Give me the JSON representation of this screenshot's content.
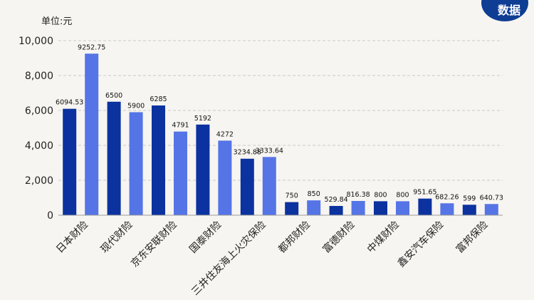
{
  "unit_label": "单位:元",
  "badge_text": "数据",
  "colors": {
    "dark": "#0b329f",
    "light": "#5574e6",
    "grid": "#c9c9c9",
    "axis": "#9a9a9a"
  },
  "chart_data": {
    "type": "bar",
    "ylim": [
      0,
      10000
    ],
    "yticks": [
      "0",
      "2,000",
      "4,000",
      "6,000",
      "8,000",
      "10,000"
    ],
    "grid": true,
    "groups": [
      {
        "label": "日本财险",
        "values": [
          6094.53,
          9252.75
        ],
        "value_labels": [
          "6094.53",
          "9252.75"
        ]
      },
      {
        "label": "现代财险",
        "values": [
          6500,
          5900
        ],
        "value_labels": [
          "6500",
          "5900"
        ]
      },
      {
        "label": "京东安联财险",
        "values": [
          6285,
          4791
        ],
        "value_labels": [
          "6285",
          "4791"
        ]
      },
      {
        "label": "国泰财险",
        "values": [
          5192,
          4272
        ],
        "value_labels": [
          "5192",
          "4272"
        ]
      },
      {
        "label": "三井住友海上火灾保险",
        "values": [
          3234.88,
          3333.64
        ],
        "value_labels": [
          "3234.88",
          "3333.64"
        ]
      },
      {
        "label": "都邦财险",
        "values": [
          750,
          850
        ],
        "value_labels": [
          "750",
          "850"
        ]
      },
      {
        "label": "富德财险",
        "values": [
          529.84,
          816.38
        ],
        "value_labels": [
          "529.84",
          "816.38"
        ]
      },
      {
        "label": "中煤财险",
        "values": [
          800,
          800
        ],
        "value_labels": [
          "800",
          "800"
        ]
      },
      {
        "label": "鑫安汽车保险",
        "values": [
          951.65,
          682.26
        ],
        "value_labels": [
          "951.65",
          "682.26"
        ]
      },
      {
        "label": "富邦保险",
        "values": [
          599,
          640.73
        ],
        "value_labels": [
          "599",
          "640.73"
        ]
      }
    ]
  }
}
